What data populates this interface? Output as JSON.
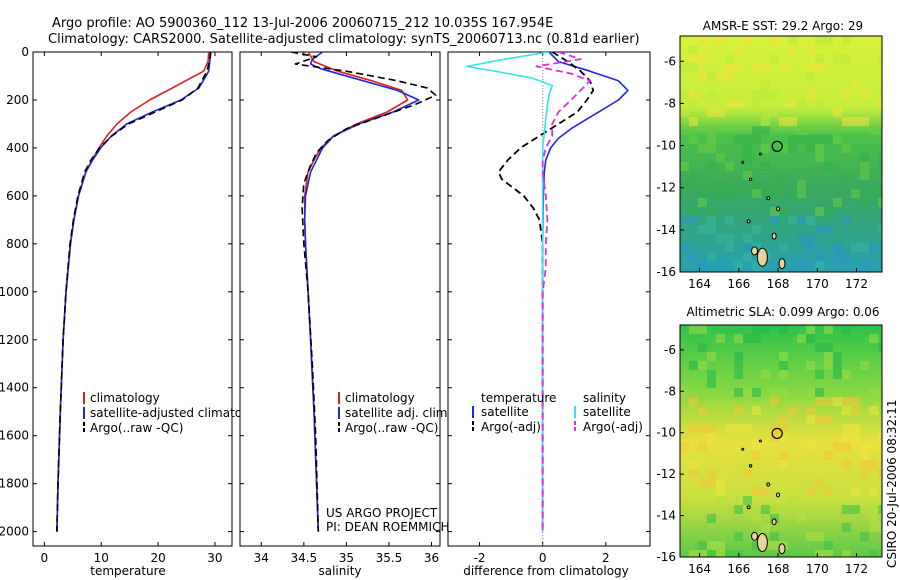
{
  "title_line1": "Argo profile: AO 5900360_112 13-Jul-2006 20060715_212 10.035S 167.954E",
  "title_line2": "Climatology: CARS2000. Satellite-adjusted climatology: synTS_20060713.nc (0.81d earlier)",
  "side_label": "CSIRO 20-Jul-2006 08:32:11",
  "credit_line1": "US ARGO PROJECT",
  "credit_line2": "PI: DEAN ROEMMICH",
  "colors": {
    "climatology": "#e0201c",
    "satellite": "#1c2ae0",
    "argo": "#000000",
    "satellite_salinity": "#33e6ee",
    "argo_salinity": "#e02ee0",
    "zero_line": "#888888"
  },
  "chart_data": [
    {
      "type": "line",
      "panel": "temperature",
      "xlabel": "temperature",
      "xlim": [
        -2,
        33
      ],
      "xticks": [
        "0",
        "10",
        "20",
        "30"
      ],
      "ylim": [
        0,
        2060
      ],
      "yticks": [
        "0",
        "200",
        "400",
        "600",
        "800",
        "1000",
        "1200",
        "1400",
        "1600",
        "1800",
        "2000"
      ],
      "legend": [
        "climatology",
        "satellite-adjusted climatology",
        "Argo(..raw -QC)"
      ],
      "series": [
        {
          "name": "climatology",
          "depth": [
            0,
            40,
            80,
            150,
            200,
            250,
            300,
            350,
            400,
            450,
            500,
            600,
            700,
            800,
            1000,
            1200,
            1500,
            1800,
            2000
          ],
          "values": [
            28.9,
            28.8,
            28.0,
            22.5,
            18.5,
            15.2,
            12.8,
            11.0,
            9.6,
            8.4,
            7.3,
            6.0,
            5.2,
            4.6,
            3.8,
            3.3,
            2.8,
            2.4,
            2.2
          ]
        },
        {
          "name": "satellite-adjusted climatology",
          "depth": [
            0,
            40,
            80,
            150,
            200,
            250,
            300,
            350,
            400,
            450,
            500,
            600,
            700,
            800,
            1000,
            1200,
            1500,
            1800,
            2000
          ],
          "values": [
            29.3,
            29.1,
            28.9,
            27.2,
            24.0,
            19.0,
            14.5,
            11.8,
            9.9,
            8.5,
            7.3,
            6.0,
            5.2,
            4.6,
            3.8,
            3.3,
            2.8,
            2.4,
            2.2
          ]
        },
        {
          "name": "Argo(..raw -QC)",
          "depth": [
            0,
            40,
            80,
            150,
            200,
            250,
            300,
            350,
            400,
            450,
            500,
            600,
            700,
            800,
            1000,
            1200,
            1500,
            1800,
            2000
          ],
          "values": [
            29.2,
            29.0,
            28.6,
            27.0,
            24.2,
            19.5,
            14.8,
            11.9,
            9.7,
            8.2,
            7.1,
            5.9,
            5.1,
            4.5,
            3.8,
            3.3,
            2.8,
            2.4,
            2.2
          ]
        }
      ]
    },
    {
      "type": "line",
      "panel": "salinity",
      "xlabel": "salinity",
      "xlim": [
        33.75,
        36.1
      ],
      "xticks": [
        "34",
        "34.5",
        "35",
        "35.5",
        "36"
      ],
      "ylim": [
        0,
        2060
      ],
      "legend": [
        "climatology",
        "satellite adj. clim.",
        "Argo(..raw -QC)"
      ],
      "series": [
        {
          "name": "climatology",
          "depth": [
            0,
            40,
            80,
            120,
            160,
            200,
            250,
            300,
            350,
            400,
            450,
            500,
            600,
            700,
            800,
            1000,
            1200,
            1500,
            1800,
            2000
          ],
          "values": [
            34.55,
            34.62,
            34.9,
            35.3,
            35.65,
            35.72,
            35.48,
            35.12,
            34.85,
            34.7,
            34.62,
            34.55,
            34.51,
            34.51,
            34.52,
            34.55,
            34.58,
            34.62,
            34.65,
            34.67
          ]
        },
        {
          "name": "satellite adj. clim.",
          "depth": [
            0,
            30,
            50,
            70,
            120,
            160,
            200,
            250,
            300,
            350,
            400,
            450,
            500,
            600,
            700,
            800,
            1000,
            1200,
            1500,
            1800,
            2000
          ],
          "values": [
            34.72,
            34.6,
            34.58,
            34.7,
            35.2,
            35.6,
            35.85,
            35.55,
            35.15,
            34.85,
            34.72,
            34.65,
            34.58,
            34.52,
            34.51,
            34.52,
            34.55,
            34.58,
            34.62,
            34.65,
            34.67
          ]
        },
        {
          "name": "Argo(..raw -QC)",
          "depth": [
            0,
            20,
            50,
            80,
            120,
            150,
            180,
            220,
            270,
            320,
            370,
            420,
            480,
            550,
            650,
            800,
            1000,
            1300,
            1600,
            2000
          ],
          "values": [
            34.35,
            34.65,
            34.4,
            35.0,
            35.6,
            35.95,
            36.05,
            35.8,
            35.4,
            35.0,
            34.78,
            34.65,
            34.57,
            34.5,
            34.48,
            34.5,
            34.55,
            34.6,
            34.64,
            34.67
          ]
        }
      ]
    },
    {
      "type": "line",
      "panel": "difference",
      "xlabel": "difference from climatology",
      "xlim": [
        -3.0,
        3.4
      ],
      "xticks": [
        "-2",
        "0",
        "2"
      ],
      "ylim": [
        0,
        2060
      ],
      "legend_temperature_header": "temperature",
      "legend_salinity_header": "salinity",
      "legend_temperature": [
        "satellite",
        "Argo(-adj)"
      ],
      "legend_salinity": [
        "satellite",
        "Argo(-adj)"
      ],
      "series": [
        {
          "name": "temperature satellite",
          "depth": [
            0,
            40,
            80,
            120,
            160,
            200,
            240,
            280,
            320,
            360,
            400,
            450,
            500,
            600,
            800,
            1000,
            2000
          ],
          "values": [
            0.2,
            0.5,
            1.5,
            2.4,
            2.7,
            2.4,
            1.9,
            1.4,
            0.9,
            0.5,
            0.25,
            0.1,
            0.05,
            0.02,
            0.0,
            0.0,
            0.0
          ]
        },
        {
          "name": "temperature Argo(-adj)",
          "depth": [
            0,
            40,
            80,
            120,
            160,
            200,
            250,
            300,
            350,
            400,
            450,
            500,
            530,
            560,
            600,
            650,
            700,
            800,
            1000,
            1200,
            2000
          ],
          "values": [
            0.3,
            0.8,
            1.2,
            1.5,
            1.6,
            1.4,
            1.1,
            0.5,
            -0.1,
            -0.7,
            -1.1,
            -1.4,
            -1.3,
            -1.0,
            -0.6,
            -0.3,
            -0.1,
            0.0,
            0.0,
            0.0,
            0.0
          ]
        },
        {
          "name": "salinity satellite",
          "depth": [
            0,
            30,
            60,
            80,
            110,
            140,
            180,
            220,
            280,
            340,
            400,
            500,
            600,
            800,
            1000,
            2000
          ],
          "values": [
            0.2,
            -1.2,
            -2.4,
            -1.5,
            -0.3,
            0.3,
            0.2,
            0.15,
            0.1,
            0.05,
            0.0,
            0.0,
            0.0,
            0.0,
            0.0,
            0.0
          ]
        },
        {
          "name": "salinity Argo(-adj)",
          "depth": [
            0,
            30,
            60,
            90,
            120,
            160,
            200,
            250,
            300,
            350,
            400,
            450,
            500,
            600,
            700,
            800,
            900,
            1000,
            1200,
            2000
          ],
          "values": [
            0.5,
            1.2,
            -0.2,
            0.9,
            1.5,
            1.2,
            0.9,
            0.5,
            0.3,
            0.3,
            0.1,
            0.0,
            0.0,
            0.1,
            0.15,
            0.1,
            0.1,
            0.0,
            0.0,
            0.0
          ]
        }
      ]
    },
    {
      "type": "heatmap",
      "panel": "sst_map",
      "title": "AMSR-E SST: 29.2 Argo: 29",
      "xlim": [
        163,
        173.3
      ],
      "ylim": [
        -16,
        -4.8
      ],
      "xticks": [
        "164",
        "166",
        "168",
        "170",
        "172"
      ],
      "yticks": [
        "-6",
        "-8",
        "-10",
        "-12",
        "-14",
        "-16"
      ],
      "argo_position": {
        "lon": 167.954,
        "lat": -10.035
      }
    },
    {
      "type": "heatmap",
      "panel": "sla_map",
      "title": "Altimetric SLA: 0.099 Argo: 0.06",
      "xlim": [
        163,
        173.3
      ],
      "ylim": [
        -16,
        -4.8
      ],
      "xticks": [
        "164",
        "166",
        "168",
        "170",
        "172"
      ],
      "yticks": [
        "-6",
        "-8",
        "-10",
        "-12",
        "-14",
        "-16"
      ],
      "argo_position": {
        "lon": 167.954,
        "lat": -10.035
      }
    }
  ]
}
